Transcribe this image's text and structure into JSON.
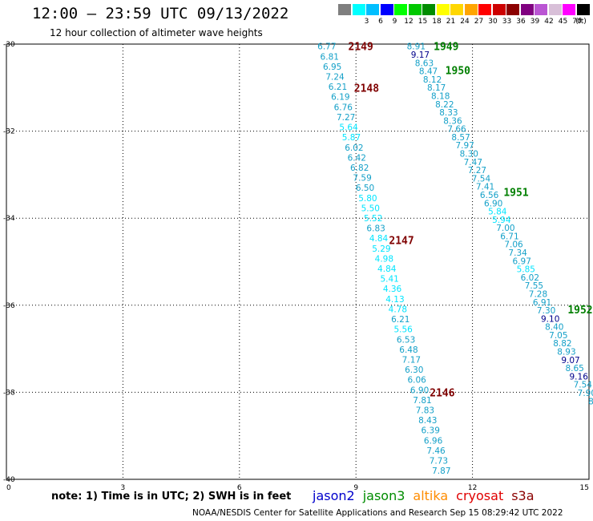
{
  "header": {
    "title": "12:00 – 23:59 UTC 09/13/2022",
    "subtitle": "12 hour collection of altimeter wave heights"
  },
  "colorbar": {
    "unit_label": "(ft)",
    "bins": [
      {
        "label": "",
        "color": "#7f7f7f"
      },
      {
        "label": "3",
        "color": "#00ffff"
      },
      {
        "label": "6",
        "color": "#00bfff"
      },
      {
        "label": "9",
        "color": "#0000ff"
      },
      {
        "label": "12",
        "color": "#00ff00"
      },
      {
        "label": "15",
        "color": "#00c800"
      },
      {
        "label": "18",
        "color": "#008c00"
      },
      {
        "label": "21",
        "color": "#ffff00"
      },
      {
        "label": "24",
        "color": "#ffd700"
      },
      {
        "label": "27",
        "color": "#ffa500"
      },
      {
        "label": "30",
        "color": "#ff0000"
      },
      {
        "label": "33",
        "color": "#cd0000"
      },
      {
        "label": "36",
        "color": "#8b0000"
      },
      {
        "label": "39",
        "color": "#800080"
      },
      {
        "label": "42",
        "color": "#ba55d3"
      },
      {
        "label": "45",
        "color": "#d8bfd8"
      },
      {
        "label": "70",
        "color": "#ff00ff"
      },
      {
        "label": "",
        "color": "#000000"
      }
    ]
  },
  "axes": {
    "lon_ticks": [
      "0",
      "3",
      "6",
      "9",
      "12",
      "15"
    ],
    "lat_ticks": [
      "-30",
      "-32",
      "-34",
      "-36",
      "-38",
      "-40"
    ]
  },
  "chart_data": {
    "type": "scatter",
    "xlim": [
      0,
      15
    ],
    "ylim": [
      -40,
      -30
    ],
    "grid": true,
    "value_colors": {
      "lt6": "#00e5ff",
      "6to9": "#14a0c8",
      "ge9": "#00008b"
    },
    "pass_colors": {
      "jason3": "#007f00",
      "cryosat": "#7f0000"
    },
    "passes": [
      {
        "label": "2149",
        "x": 8.8,
        "y": -30.05,
        "sat": "cryosat"
      },
      {
        "label": "1949",
        "x": 11.0,
        "y": -30.05,
        "sat": "jason3"
      },
      {
        "label": "1950",
        "x": 11.3,
        "y": -30.6,
        "sat": "jason3"
      },
      {
        "label": "2148",
        "x": 8.95,
        "y": -31.0,
        "sat": "cryosat"
      },
      {
        "label": "1951",
        "x": 12.8,
        "y": -33.4,
        "sat": "jason3"
      },
      {
        "label": "2147",
        "x": 9.85,
        "y": -34.5,
        "sat": "cryosat"
      },
      {
        "label": "1952",
        "x": 14.45,
        "y": -36.1,
        "sat": "jason3"
      },
      {
        "label": "2146",
        "x": 10.9,
        "y": -38.0,
        "sat": "cryosat"
      }
    ],
    "tracks": [
      {
        "name": "cryosat",
        "start": [
          8.25,
          -30.05
        ],
        "end": [
          11.2,
          -39.8
        ],
        "values": [
          "6.77",
          "6.81",
          "6.95",
          "7.24",
          "6.21",
          "6.19",
          "6.76",
          "7.27",
          "5.64",
          "5.87",
          "6.02",
          "6.42",
          "6.82",
          "7.59",
          "6.50",
          "5.80",
          "5.50",
          "5.52",
          "6.83",
          "4.84",
          "5.29",
          "4.98",
          "4.84",
          "5.41",
          "4.36",
          "4.13",
          "4.78",
          "6.21",
          "5.56",
          "6.53",
          "6.48",
          "7.17",
          "6.30",
          "6.06",
          "6.90",
          "7.81",
          "7.83",
          "8.43",
          "6.39",
          "6.96",
          "7.46",
          "7.73",
          "7.87"
        ]
      },
      {
        "name": "jason3",
        "start": [
          10.55,
          -30.05
        ],
        "end": [
          15.05,
          -38.2
        ],
        "values": [
          "8.91",
          "9.17",
          "8.63",
          "8.47",
          "8.12",
          "8.17",
          "8.18",
          "8.22",
          "8.33",
          "8.36",
          "7.66",
          "8.57",
          "7.97",
          "8.30",
          "7.47",
          "7.27",
          "7.54",
          "7.41",
          "6.56",
          "6.90",
          "5.84",
          "5.94",
          "7.00",
          "6.71",
          "7.06",
          "7.34",
          "6.97",
          "5.85",
          "6.02",
          "7.55",
          "7.28",
          "6.91",
          "7.30",
          "9.10",
          "8.40",
          "7.05",
          "8.82",
          "8.93",
          "9.07",
          "8.65",
          "9.16",
          "7.54",
          "7.90",
          "8"
        ]
      }
    ]
  },
  "footer": {
    "note": "note:  1) Time is in UTC;  2) SWH is in feet",
    "credit": "NOAA/NESDIS Center for Satellite Applications and Research     Sep 15 08:29:42 UTC 2022"
  },
  "legend": [
    {
      "label": "jason2",
      "color": "#0000cc"
    },
    {
      "label": "jason3",
      "color": "#008c00"
    },
    {
      "label": "altika",
      "color": "#ff8c00"
    },
    {
      "label": "cryosat",
      "color": "#e00000"
    },
    {
      "label": "s3a",
      "color": "#8b0000"
    }
  ]
}
